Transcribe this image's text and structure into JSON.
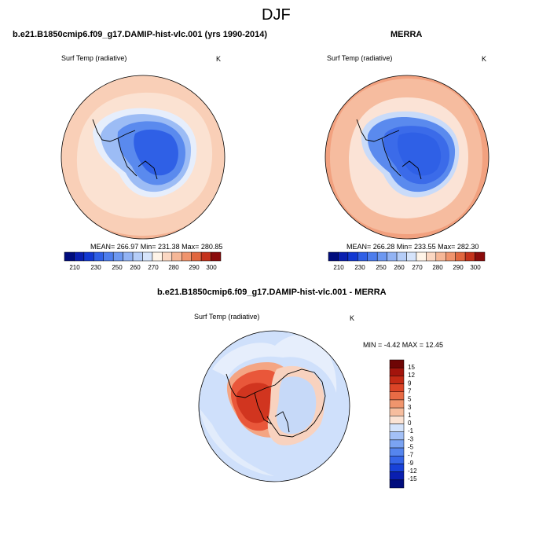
{
  "main_title": "DJF",
  "colors": {
    "antarctic_core": "#2f60e6",
    "antarctic_mid": "#5a8aee",
    "antarctic_edge": "#9cbcf5",
    "ocean_warm": "#f7c8ad",
    "ocean_hot": "#f2a17f",
    "diff_neutral": "#cfe0fb",
    "diff_warm": "#e9573a",
    "diff_hot": "#d1351f"
  },
  "chart_data": [
    {
      "type": "heatmap",
      "title": "b.e21.B1850cmip6.f09_g17.DAMIP-hist-vlc.001 (yrs 1990-2014)",
      "variable": "Surf Temp (radiative)",
      "units": "K",
      "stats_text": "MEAN= 266.97  Min= 231.38  Max= 280.85",
      "stats": {
        "mean": 266.97,
        "min": 231.38,
        "max": 280.85
      },
      "colorbar": {
        "levels": [
          210,
          220,
          230,
          240,
          250,
          255,
          260,
          265,
          270,
          275,
          280,
          285,
          290,
          295,
          300
        ],
        "labels": [
          "210",
          "230",
          "250",
          "260",
          "270",
          "280",
          "290",
          "300"
        ],
        "colors": [
          "#000c7d",
          "#0a1fb0",
          "#1238d2",
          "#2f5fe6",
          "#4d7ded",
          "#6d98f1",
          "#92b3f4",
          "#b5cdf8",
          "#d6e4fb",
          "#fff4e8",
          "#fbd7c2",
          "#f6b797",
          "#f0946d",
          "#e1673f",
          "#c4321b",
          "#8a0b0b"
        ]
      }
    },
    {
      "type": "heatmap",
      "title": "MERRA",
      "variable": "Surf Temp (radiative)",
      "units": "K",
      "stats_text": "MEAN= 266.28  Min= 233.55  Max= 282.30",
      "stats": {
        "mean": 266.28,
        "min": 233.55,
        "max": 282.3
      },
      "colorbar": {
        "levels": [
          210,
          220,
          230,
          240,
          250,
          255,
          260,
          265,
          270,
          275,
          280,
          285,
          290,
          295,
          300
        ],
        "labels": [
          "210",
          "230",
          "250",
          "260",
          "270",
          "280",
          "290",
          "300"
        ],
        "colors": [
          "#000c7d",
          "#0a1fb0",
          "#1238d2",
          "#2f5fe6",
          "#4d7ded",
          "#6d98f1",
          "#92b3f4",
          "#b5cdf8",
          "#d6e4fb",
          "#fff4e8",
          "#fbd7c2",
          "#f6b797",
          "#f0946d",
          "#e1673f",
          "#c4321b",
          "#8a0b0b"
        ]
      }
    },
    {
      "type": "heatmap",
      "title": "b.e21.B1850cmip6.f09_g17.DAMIP-hist-vlc.001 - MERRA",
      "variable": "Surf Temp (radiative)",
      "units": "K",
      "stats_text": "MIN = -4.42 MAX = 12.45",
      "stats": {
        "min": -4.42,
        "max": 12.45
      },
      "colorbar": {
        "levels": [
          -15,
          -12,
          -9,
          -7,
          -5,
          -3,
          -1,
          0,
          1,
          3,
          5,
          7,
          9,
          12,
          15
        ],
        "labels": [
          "15",
          "12",
          "9",
          "7",
          "5",
          "3",
          "1",
          "0",
          "-1",
          "-3",
          "-5",
          "-7",
          "-9",
          "-12",
          "-15"
        ],
        "colors": [
          "#000c7d",
          "#0a1fb0",
          "#1842d9",
          "#3565e8",
          "#5585ee",
          "#7aa3f2",
          "#a3c0f6",
          "#d4e3fb",
          "#fbe3d4",
          "#f6bd9e",
          "#f0956d",
          "#e86b45",
          "#dc4527",
          "#c42a15",
          "#a3140c",
          "#6e0505"
        ]
      }
    }
  ]
}
